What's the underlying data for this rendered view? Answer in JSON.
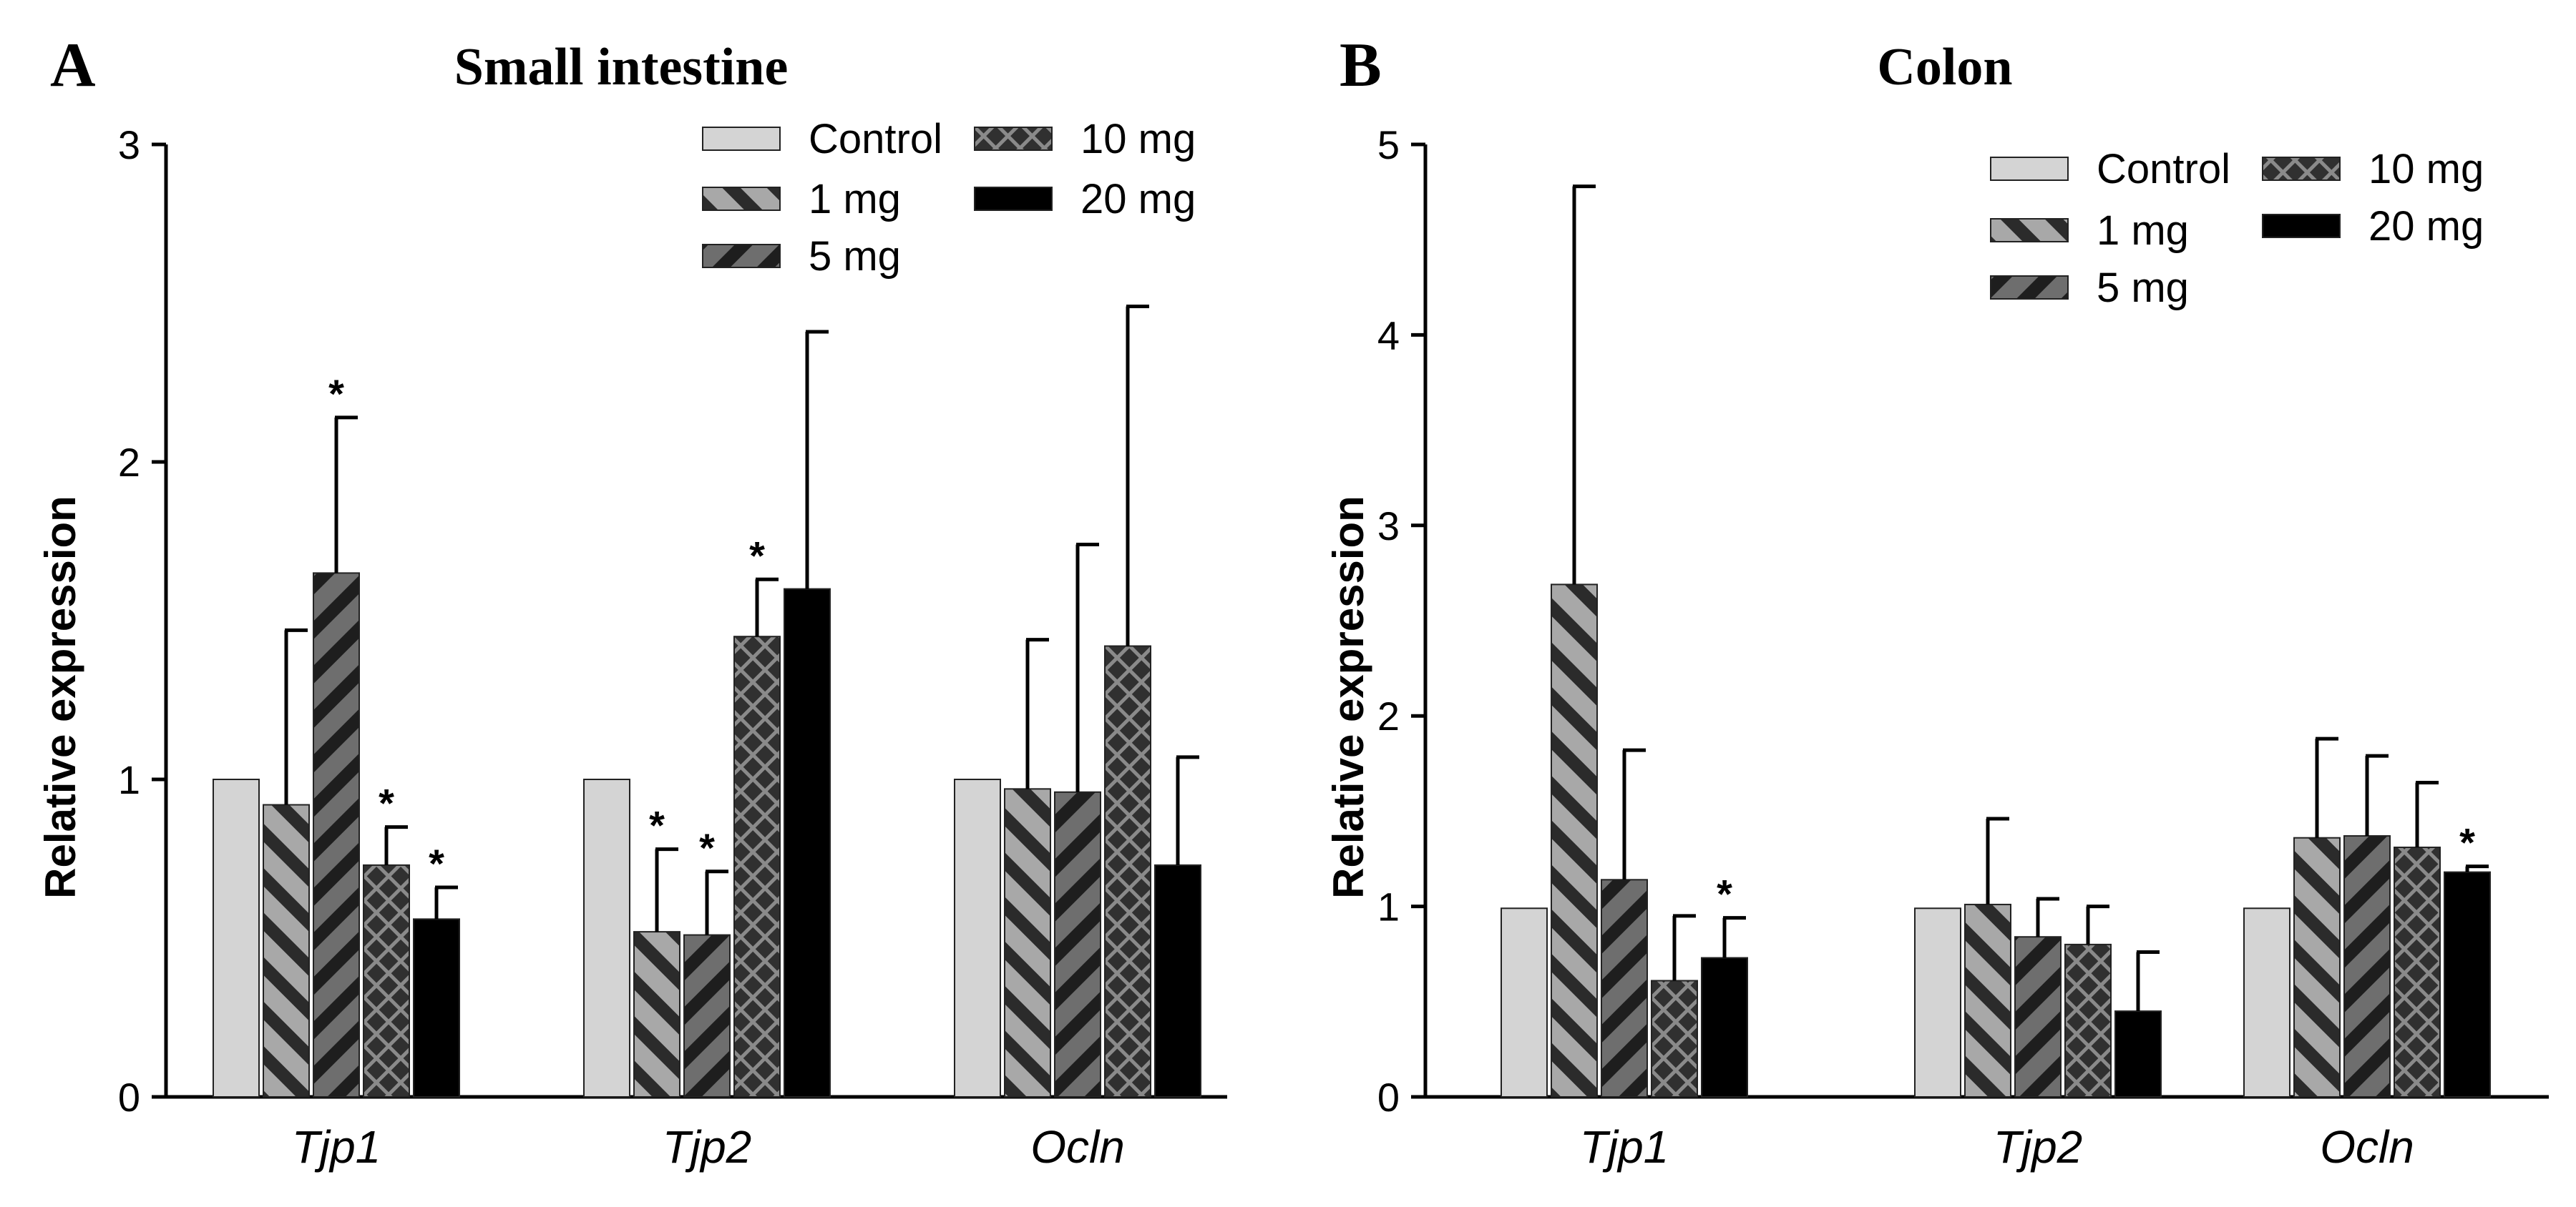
{
  "chart_data": [
    {
      "type": "bar",
      "panel_label": "A",
      "title": "Small intestine",
      "xlabel": "",
      "ylabel": "Relative expression",
      "ylim": [
        0,
        3
      ],
      "yticks": [
        "0",
        "1",
        "2",
        "3"
      ],
      "categories": [
        "Tjp1",
        "Tjp2",
        "Ocln"
      ],
      "legend_position": "top-right",
      "series": [
        {
          "name": "Control",
          "values": [
            1.0,
            1.0,
            1.0
          ],
          "errors": [
            0,
            0,
            0
          ],
          "significant": [
            false,
            false,
            false
          ]
        },
        {
          "name": "1 mg",
          "values": [
            0.92,
            0.52,
            0.97
          ],
          "errors": [
            0.55,
            0.26,
            0.47
          ],
          "significant": [
            false,
            true,
            false
          ]
        },
        {
          "name": "5 mg",
          "values": [
            1.65,
            0.51,
            0.96
          ],
          "errors": [
            0.49,
            0.2,
            0.78
          ],
          "significant": [
            true,
            true,
            false
          ]
        },
        {
          "name": "10 mg",
          "values": [
            0.73,
            1.45,
            1.42
          ],
          "errors": [
            0.12,
            0.18,
            1.07
          ],
          "significant": [
            true,
            true,
            false
          ]
        },
        {
          "name": "20 mg",
          "values": [
            0.56,
            1.6,
            0.73
          ],
          "errors": [
            0.1,
            0.81,
            0.34
          ],
          "significant": [
            true,
            false,
            false
          ]
        }
      ],
      "significance_marker": "*"
    },
    {
      "type": "bar",
      "panel_label": "B",
      "title": "Colon",
      "xlabel": "",
      "ylabel": "Relative expression",
      "ylim": [
        0,
        5
      ],
      "yticks": [
        "0",
        "1",
        "2",
        "3",
        "4",
        "5"
      ],
      "categories": [
        "Tjp1",
        "Tjp2",
        "Ocln"
      ],
      "legend_position": "top-right",
      "series": [
        {
          "name": "Control",
          "values": [
            0.99,
            0.99,
            0.99
          ],
          "errors": [
            0,
            0,
            0
          ],
          "significant": [
            false,
            false,
            false
          ]
        },
        {
          "name": "1 mg",
          "values": [
            2.69,
            1.01,
            1.36
          ],
          "errors": [
            2.09,
            0.45,
            0.52
          ],
          "significant": [
            false,
            false,
            false
          ]
        },
        {
          "name": "5 mg",
          "values": [
            1.14,
            0.84,
            1.37
          ],
          "errors": [
            0.68,
            0.2,
            0.42
          ],
          "significant": [
            false,
            false,
            false
          ]
        },
        {
          "name": "10 mg",
          "values": [
            0.61,
            0.8,
            1.31
          ],
          "errors": [
            0.34,
            0.2,
            0.34
          ],
          "significant": [
            false,
            false,
            false
          ]
        },
        {
          "name": "20 mg",
          "values": [
            0.73,
            0.45,
            1.18
          ],
          "errors": [
            0.21,
            0.31,
            0.03
          ],
          "significant": [
            true,
            false,
            true
          ]
        }
      ],
      "significance_marker": "*"
    }
  ],
  "series_styles": [
    {
      "name": "Control",
      "fill": "#d4d4d4",
      "stripe": "#d4d4d4",
      "pattern": "solid"
    },
    {
      "name": "1 mg",
      "fill": "#a8a8a8",
      "stripe": "#2b2b2b",
      "pattern": "back-diagonal"
    },
    {
      "name": "5 mg",
      "fill": "#6e6e6e",
      "stripe": "#1e1e1e",
      "pattern": "diagonal"
    },
    {
      "name": "10 mg",
      "fill": "#303030",
      "stripe": "#8a8a8a",
      "pattern": "crosshatch"
    },
    {
      "name": "20 mg",
      "fill": "#000000",
      "stripe": "#000000",
      "pattern": "solid"
    }
  ]
}
